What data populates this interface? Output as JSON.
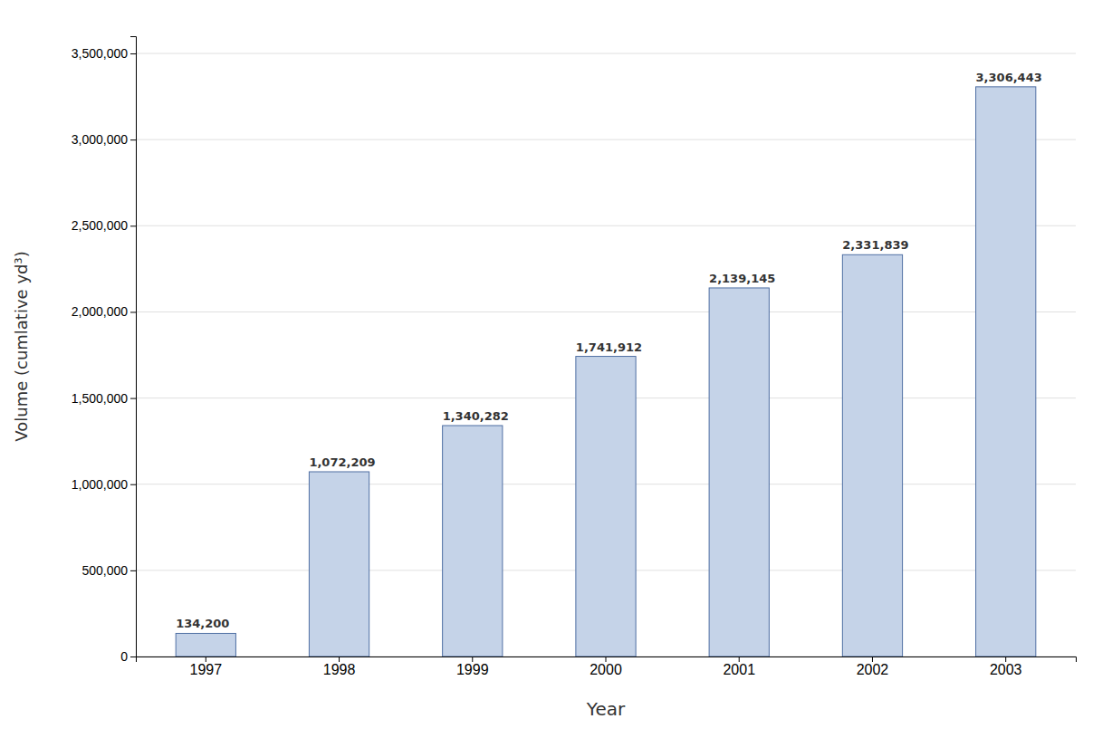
{
  "chart_data": {
    "type": "bar",
    "categories": [
      "1997",
      "1998",
      "1999",
      "2000",
      "2001",
      "2002",
      "2003"
    ],
    "values": [
      134200,
      1072209,
      1340282,
      1741912,
      2139145,
      2331839,
      3306443
    ],
    "value_labels": [
      "134,200",
      "1,072,209",
      "1,340,282",
      "1,741,912",
      "2,139,145",
      "2,331,839",
      "3,306,443"
    ],
    "data_labels": true,
    "color": "#c5d3e8",
    "xlabel": "Year",
    "ylabel": "Volume (cumlative yd³)",
    "ylim": [
      0,
      3600000
    ],
    "yticks": [
      0,
      {
        "value": 500000,
        "label": "500,000"
      },
      {
        "value": 1000000,
        "label": "1,000,000"
      },
      {
        "value": 1500000,
        "label": "1,500,000"
      },
      {
        "value": 2000000,
        "label": "2,000,000"
      },
      {
        "value": 2500000,
        "label": "2,500,000"
      },
      {
        "value": 3000000,
        "label": "3,000,000"
      },
      {
        "value": 3500000,
        "label": "3,500,000"
      }
    ],
    "grid": true
  }
}
